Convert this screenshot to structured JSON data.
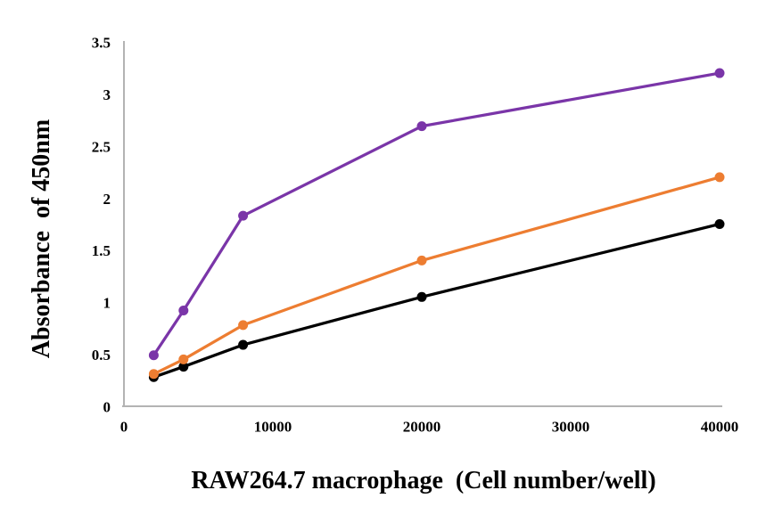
{
  "page": {
    "background_color": "#ffffff"
  },
  "chart_data": {
    "type": "line",
    "title": "",
    "xlabel": "RAW264.7 macrophage  (Cell number/well)",
    "ylabel": "Absorbance  of 450nm",
    "x": [
      2000,
      4000,
      8000,
      20000,
      40000
    ],
    "series": [
      {
        "name": "black",
        "color": "#000000",
        "values": [
          0.28,
          0.38,
          0.59,
          1.05,
          1.75
        ]
      },
      {
        "name": "orange",
        "color": "#ED7D31",
        "values": [
          0.31,
          0.45,
          0.78,
          1.4,
          2.2
        ]
      },
      {
        "name": "purple",
        "color": "#7A35A8",
        "values": [
          0.49,
          0.92,
          1.83,
          2.69,
          3.2
        ]
      }
    ],
    "xlim": [
      0,
      40000
    ],
    "ylim": [
      0,
      3.5
    ],
    "x_ticks": [
      0,
      10000,
      20000,
      30000,
      40000
    ],
    "x_tick_labels": [
      "0",
      "10000",
      "20000",
      "30000",
      "40000"
    ],
    "y_ticks": [
      0,
      0.5,
      1,
      1.5,
      2,
      2.5,
      3,
      3.5
    ],
    "y_tick_labels": [
      "0",
      "0.5",
      "1",
      "1.5",
      "2",
      "2.5",
      "3",
      "3.5"
    ],
    "grid": false,
    "legend": "none",
    "marker": "circle",
    "axis_color": "#B3B3B3"
  }
}
